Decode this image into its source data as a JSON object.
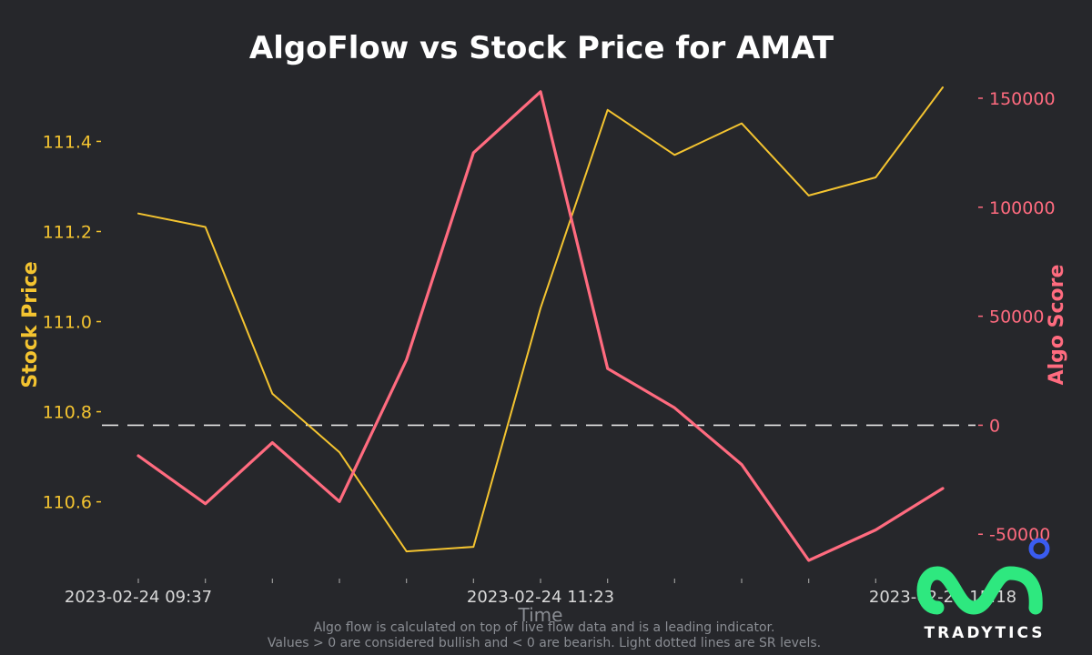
{
  "colors": {
    "background": "#26272b",
    "stock_price": "#f4c430",
    "algo_score": "#ff6b7f",
    "zero_line": "#e6e6e6",
    "logo_green": "#2ee87f",
    "logo_dot": "#3a5cf0"
  },
  "chart_data": {
    "type": "line",
    "title": "AlgoFlow vs Stock Price for AMAT",
    "xlabel": "Time",
    "x_tick_labels": [
      "2023-02-24 09:37",
      "2023-02-24 11:23",
      "2023-02-24 15:18"
    ],
    "left_axis": {
      "label": "Stock Price",
      "ylim": [
        110.47,
        111.52
      ],
      "ticks": [
        110.6,
        110.8,
        111.0,
        111.2,
        111.4
      ],
      "tick_labels": [
        "110.6",
        "110.8",
        "111.0",
        "111.2",
        "111.4"
      ]
    },
    "right_axis": {
      "label": "Algo Score",
      "ylim": [
        -62000,
        155000
      ],
      "ticks": [
        -50000,
        0,
        50000,
        100000,
        150000
      ],
      "tick_labels": [
        "-50000",
        "0",
        "50000",
        "100000",
        "150000"
      ]
    },
    "reference_line": {
      "axis": "right",
      "value": 0,
      "style": "dashed"
    },
    "series": [
      {
        "name": "Stock Price",
        "axis": "left",
        "values": [
          111.24,
          111.21,
          110.84,
          110.71,
          110.49,
          110.5,
          111.03,
          111.47,
          111.37,
          111.44,
          111.28,
          111.32,
          111.52
        ]
      },
      {
        "name": "Algo Score",
        "axis": "right",
        "values": [
          -14000,
          -36000,
          -8000,
          -35000,
          30000,
          125000,
          153000,
          26000,
          8000,
          -18000,
          -62000,
          -48000,
          -29000
        ]
      }
    ],
    "grid": false,
    "legend": "none",
    "footnote_lines": [
      "Algo flow is calculated on top of live flow data and is a leading indicator.",
      "Values > 0 are considered bullish and < 0 are bearish. Light dotted lines are SR levels."
    ]
  },
  "brand": {
    "name": "TRADYTICS",
    "icon": "tradytics-logo-icon"
  }
}
